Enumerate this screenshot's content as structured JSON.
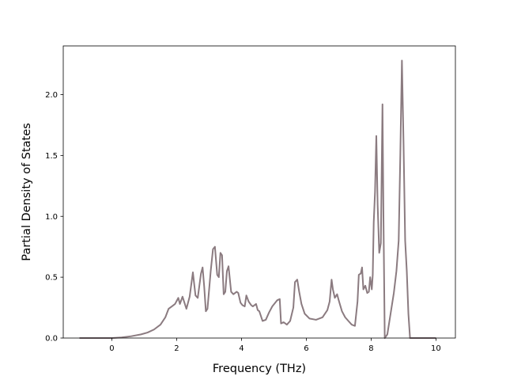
{
  "chart_data": {
    "type": "line",
    "title": "",
    "xlabel": "Frequency (THz)",
    "ylabel": "Partial Density of States",
    "xlim": [
      -1.5,
      10.6
    ],
    "ylim": [
      0.0,
      2.4
    ],
    "xticks": [
      0,
      2,
      4,
      6,
      8,
      10
    ],
    "xtick_labels": [
      "0",
      "2",
      "4",
      "6",
      "8",
      "10"
    ],
    "yticks": [
      0.0,
      0.5,
      1.0,
      1.5,
      2.0
    ],
    "ytick_labels": [
      "0.0",
      "0.5",
      "1.0",
      "1.5",
      "2.0"
    ],
    "grid": false,
    "legend": "none",
    "series": [
      {
        "color": "#8b7b80",
        "points": [
          [
            -1.0,
            0.0
          ],
          [
            0.0,
            0.0
          ],
          [
            0.3,
            0.005
          ],
          [
            0.6,
            0.015
          ],
          [
            0.9,
            0.03
          ],
          [
            1.1,
            0.045
          ],
          [
            1.3,
            0.07
          ],
          [
            1.5,
            0.11
          ],
          [
            1.65,
            0.17
          ],
          [
            1.75,
            0.24
          ],
          [
            1.85,
            0.26
          ],
          [
            1.95,
            0.28
          ],
          [
            2.05,
            0.33
          ],
          [
            2.1,
            0.28
          ],
          [
            2.18,
            0.34
          ],
          [
            2.3,
            0.24
          ],
          [
            2.4,
            0.34
          ],
          [
            2.5,
            0.54
          ],
          [
            2.58,
            0.35
          ],
          [
            2.65,
            0.33
          ],
          [
            2.75,
            0.53
          ],
          [
            2.8,
            0.58
          ],
          [
            2.85,
            0.42
          ],
          [
            2.9,
            0.22
          ],
          [
            2.95,
            0.24
          ],
          [
            3.05,
            0.55
          ],
          [
            3.12,
            0.73
          ],
          [
            3.18,
            0.75
          ],
          [
            3.25,
            0.52
          ],
          [
            3.3,
            0.5
          ],
          [
            3.35,
            0.7
          ],
          [
            3.4,
            0.68
          ],
          [
            3.45,
            0.36
          ],
          [
            3.5,
            0.38
          ],
          [
            3.55,
            0.55
          ],
          [
            3.6,
            0.59
          ],
          [
            3.68,
            0.38
          ],
          [
            3.75,
            0.36
          ],
          [
            3.85,
            0.38
          ],
          [
            3.9,
            0.37
          ],
          [
            3.97,
            0.29
          ],
          [
            4.03,
            0.27
          ],
          [
            4.1,
            0.26
          ],
          [
            4.15,
            0.35
          ],
          [
            4.22,
            0.3
          ],
          [
            4.3,
            0.27
          ],
          [
            4.35,
            0.26
          ],
          [
            4.45,
            0.28
          ],
          [
            4.5,
            0.23
          ],
          [
            4.55,
            0.22
          ],
          [
            4.65,
            0.14
          ],
          [
            4.75,
            0.15
          ],
          [
            4.85,
            0.21
          ],
          [
            4.95,
            0.26
          ],
          [
            5.1,
            0.31
          ],
          [
            5.18,
            0.32
          ],
          [
            5.22,
            0.12
          ],
          [
            5.3,
            0.13
          ],
          [
            5.4,
            0.11
          ],
          [
            5.5,
            0.14
          ],
          [
            5.6,
            0.25
          ],
          [
            5.65,
            0.46
          ],
          [
            5.72,
            0.48
          ],
          [
            5.78,
            0.38
          ],
          [
            5.85,
            0.28
          ],
          [
            5.95,
            0.2
          ],
          [
            6.1,
            0.16
          ],
          [
            6.3,
            0.15
          ],
          [
            6.5,
            0.17
          ],
          [
            6.65,
            0.23
          ],
          [
            6.72,
            0.3
          ],
          [
            6.78,
            0.48
          ],
          [
            6.82,
            0.4
          ],
          [
            6.88,
            0.33
          ],
          [
            6.95,
            0.36
          ],
          [
            7.0,
            0.31
          ],
          [
            7.1,
            0.22
          ],
          [
            7.2,
            0.17
          ],
          [
            7.3,
            0.14
          ],
          [
            7.4,
            0.11
          ],
          [
            7.5,
            0.1
          ],
          [
            7.58,
            0.3
          ],
          [
            7.62,
            0.52
          ],
          [
            7.68,
            0.53
          ],
          [
            7.72,
            0.58
          ],
          [
            7.76,
            0.4
          ],
          [
            7.82,
            0.43
          ],
          [
            7.88,
            0.37
          ],
          [
            7.93,
            0.38
          ],
          [
            7.97,
            0.5
          ],
          [
            8.02,
            0.4
          ],
          [
            8.05,
            0.52
          ],
          [
            8.08,
            0.95
          ],
          [
            8.12,
            1.2
          ],
          [
            8.16,
            1.66
          ],
          [
            8.2,
            1.1
          ],
          [
            8.25,
            0.7
          ],
          [
            8.3,
            0.78
          ],
          [
            8.35,
            1.92
          ],
          [
            8.38,
            1.0
          ],
          [
            8.42,
            0.0
          ],
          [
            8.5,
            0.03
          ],
          [
            8.6,
            0.2
          ],
          [
            8.7,
            0.37
          ],
          [
            8.78,
            0.55
          ],
          [
            8.85,
            0.8
          ],
          [
            8.9,
            1.5
          ],
          [
            8.95,
            2.28
          ],
          [
            9.0,
            1.6
          ],
          [
            9.05,
            0.8
          ],
          [
            9.1,
            0.55
          ],
          [
            9.15,
            0.2
          ],
          [
            9.2,
            0.0
          ],
          [
            9.5,
            0.0
          ],
          [
            10.0,
            0.0
          ]
        ]
      }
    ]
  }
}
